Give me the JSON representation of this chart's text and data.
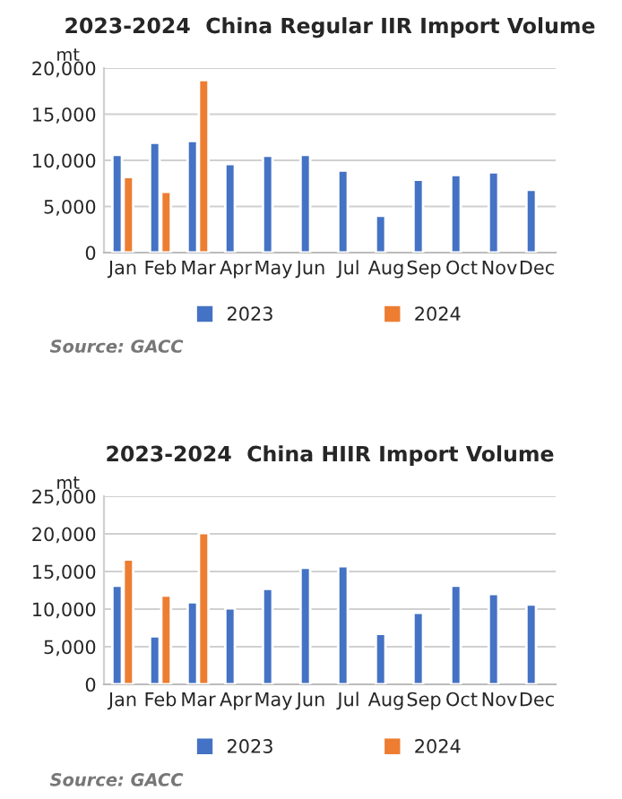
{
  "chart_data": [
    {
      "type": "bar",
      "title": "2023-2024  China Regular IIR Import Volume",
      "ylabel": "mt",
      "categories": [
        "Jan",
        "Feb",
        "Mar",
        "Apr",
        "May",
        "Jun",
        "Jul",
        "Aug",
        "Sep",
        "Oct",
        "Nov",
        "Dec"
      ],
      "series": [
        {
          "name": "2023",
          "color": "#4472c4",
          "values": [
            10600,
            11900,
            12100,
            9600,
            10500,
            10600,
            8900,
            4000,
            7900,
            8400,
            8700,
            6800
          ]
        },
        {
          "name": "2024",
          "color": "#ed7d31",
          "values": [
            8200,
            6600,
            18700,
            null,
            null,
            null,
            null,
            null,
            null,
            null,
            null,
            null
          ]
        }
      ],
      "ylim": [
        0,
        20000
      ],
      "yticks": [
        {
          "value": 0,
          "label": "0"
        },
        {
          "value": 5000,
          "label": "5,000"
        },
        {
          "value": 10000,
          "label": "10,000"
        },
        {
          "value": 15000,
          "label": "15,000"
        },
        {
          "value": 20000,
          "label": "20,000"
        }
      ],
      "grid": "y",
      "legend": "bottom",
      "annotations": [
        "Source: GACC"
      ]
    },
    {
      "type": "bar",
      "title": "2023-2024  China HIIR Import Volume",
      "ylabel": "mt",
      "categories": [
        "Jan",
        "Feb",
        "Mar",
        "Apr",
        "May",
        "Jun",
        "Jul",
        "Aug",
        "Sep",
        "Oct",
        "Nov",
        "Dec"
      ],
      "series": [
        {
          "name": "2023",
          "color": "#4472c4",
          "values": [
            13100,
            6400,
            10900,
            10100,
            12700,
            15500,
            15700,
            6700,
            9500,
            13100,
            12000,
            10600
          ]
        },
        {
          "name": "2024",
          "color": "#ed7d31",
          "values": [
            16600,
            11800,
            20100,
            null,
            null,
            null,
            null,
            null,
            null,
            null,
            null,
            null
          ]
        }
      ],
      "ylim": [
        0,
        25000
      ],
      "yticks": [
        {
          "value": 0,
          "label": "0"
        },
        {
          "value": 5000,
          "label": "5,000"
        },
        {
          "value": 10000,
          "label": "10,000"
        },
        {
          "value": 15000,
          "label": "15,000"
        },
        {
          "value": 20000,
          "label": "20,000"
        },
        {
          "value": 25000,
          "label": "25,000"
        }
      ],
      "grid": "y",
      "legend": "bottom",
      "annotations": [
        "Source: GACC"
      ]
    }
  ]
}
